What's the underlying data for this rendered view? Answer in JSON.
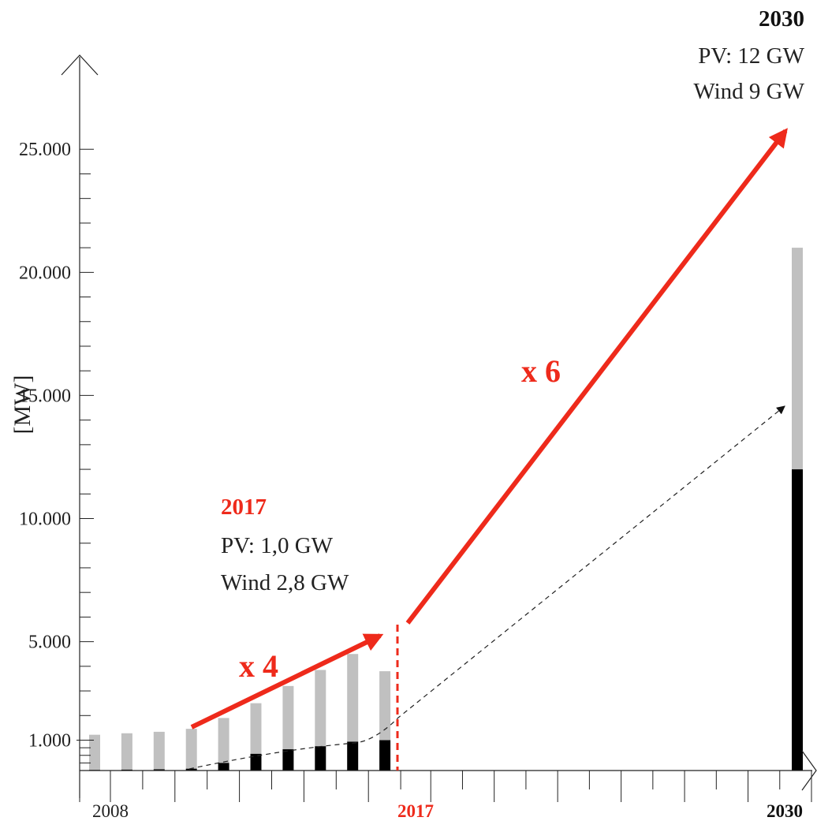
{
  "chart_data": {
    "type": "bar",
    "stacked": true,
    "ylabel": "[MW]",
    "yticks": [
      "1.000",
      "5.000",
      "10.000",
      "15.000",
      "20.000",
      "25.000"
    ],
    "ytick_values": [
      1000,
      5000,
      10000,
      15000,
      20000,
      25000
    ],
    "ylim": [
      0,
      27000
    ],
    "x_range": [
      2008,
      2030
    ],
    "xticks_labeled": [
      {
        "year": 2008,
        "label": "2008"
      },
      {
        "year": 2017,
        "label": "2017"
      },
      {
        "year": 2030,
        "label": "2030"
      }
    ],
    "series": [
      {
        "name": "PV",
        "color": "#000000",
        "x": [
          2008,
          2009,
          2010,
          2011,
          2012,
          2013,
          2014,
          2015,
          2016,
          2017,
          2030
        ],
        "values": [
          20,
          30,
          40,
          60,
          250,
          550,
          700,
          800,
          950,
          1000,
          12000
        ]
      },
      {
        "name": "Wind",
        "color": "#c0c0c0",
        "x": [
          2008,
          2009,
          2010,
          2011,
          2012,
          2013,
          2014,
          2015,
          2016,
          2017,
          2030
        ],
        "values": [
          1200,
          1250,
          1300,
          1400,
          1650,
          1950,
          2500,
          3050,
          3550,
          2800,
          9000
        ]
      }
    ],
    "annotations": {
      "mid": {
        "title": "2017",
        "line1": "PV: 1,0 GW",
        "line2": "Wind 2,8 GW"
      },
      "end": {
        "title": "2030",
        "line1": "PV: 12 GW",
        "line2": "Wind 9 GW"
      },
      "factor_short": "x 4",
      "factor_long": "x 6"
    },
    "colors": {
      "accent": "#ee2a1b",
      "pv": "#000000",
      "wind": "#c0c0c0",
      "axis": "#222222"
    },
    "grid": false
  }
}
